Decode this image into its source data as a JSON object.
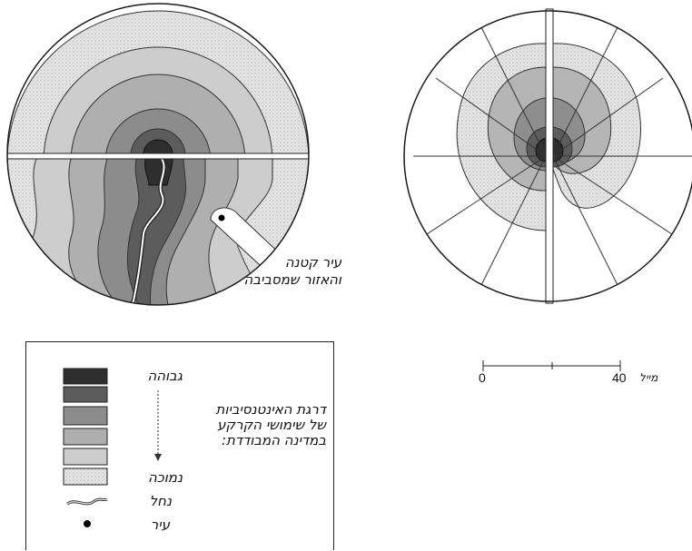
{
  "left_map": {
    "city_callout": {
      "line1": "עיר קטנה",
      "line2": "והאזור שמסביבה"
    }
  },
  "legend": {
    "high_label": "גבוהה",
    "low_label": "נמוכה",
    "title": {
      "line1": "דרגת האינטנסיביות",
      "line2": "של שימושי הקרקע",
      "line3": "במדינה המבודדת:"
    },
    "river_label": "נחל",
    "city_label": "עיר",
    "colors": [
      "#2a2a2a",
      "#555555",
      "#858585",
      "#a9a9a9",
      "#c8c8c8",
      "#e4e4e4"
    ]
  },
  "scale_bar": {
    "start": "0",
    "end": "40",
    "unit": "מייל"
  },
  "colors": {
    "zone1": "#2a2a2a",
    "zone2": "#555555",
    "zone3": "#858585",
    "zone4": "#a9a9a9",
    "zone5": "#c8c8c8",
    "zone6": "#e4e4e4",
    "river": "#ffffff",
    "line": "#1a1a1a"
  },
  "icons": [
    "river-icon",
    "city-dot-icon"
  ]
}
